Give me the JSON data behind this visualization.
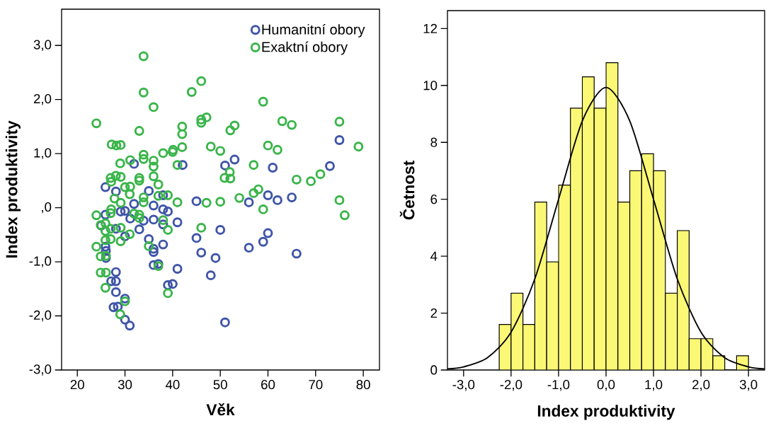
{
  "chart_data": [
    {
      "type": "scatter",
      "xlabel": "Věk",
      "ylabel": "Index produktivity",
      "marker": "circle",
      "legend": "top right",
      "xlim": [
        16.7,
        83.4
      ],
      "ylim": [
        -3.0,
        3.67
      ],
      "xticks": [
        20,
        30,
        40,
        50,
        60,
        70,
        80
      ],
      "yticks": [
        {
          "value": -3,
          "label": "-3,0"
        },
        {
          "value": -2,
          "label": "-2,0"
        },
        {
          "value": -1,
          "label": "-1,0"
        },
        {
          "value": 0,
          "label": ",0"
        },
        {
          "value": 1,
          "label": "1,0"
        },
        {
          "value": 2,
          "label": "2,0"
        },
        {
          "value": 3,
          "label": "3,0"
        }
      ],
      "series": [
        {
          "name": "Humanitní obory",
          "color": "#3f55a8",
          "x": [
            75,
            73,
            53,
            51,
            61,
            31.9,
            42.1,
            35,
            25.9,
            28.1,
            60,
            62,
            65,
            56,
            45,
            31.9,
            36,
            38,
            29.1,
            30,
            31.1,
            25.9,
            38,
            39,
            36,
            33.9,
            41,
            38,
            25,
            33,
            28.1,
            50,
            60,
            30,
            35,
            45,
            38,
            59,
            56,
            25.9,
            26,
            26,
            36,
            36,
            46,
            49,
            66,
            36,
            37,
            41,
            48,
            28.1,
            27.1,
            28.1,
            28.1,
            39,
            40,
            27.6,
            28.5,
            30,
            30,
            31,
            51
          ],
          "values": [
            1.25,
            0.77,
            0.89,
            0.78,
            0.74,
            0.81,
            0.79,
            0.31,
            0.38,
            0.3,
            0.23,
            0.14,
            0.19,
            0.1,
            0.12,
            0.07,
            0.04,
            0.23,
            -0.07,
            -0.06,
            -0.2,
            -0.13,
            -0.03,
            -0.07,
            -0.22,
            -0.24,
            -0.27,
            -0.31,
            -0.33,
            -0.4,
            -0.39,
            -0.41,
            -0.47,
            -0.53,
            -0.58,
            -0.56,
            -0.68,
            -0.63,
            -0.74,
            -0.72,
            -0.8,
            -0.93,
            -0.76,
            -0.82,
            -0.83,
            -0.93,
            -0.85,
            -1.06,
            -1.04,
            -1.13,
            -1.25,
            -1.19,
            -1.36,
            -1.36,
            -1.56,
            -1.43,
            -1.41,
            -1.84,
            -1.83,
            -1.68,
            -2.07,
            -2.18,
            -2.12
          ]
        },
        {
          "name": "Exaktní obory",
          "color": "#3ab54a",
          "x": [
            24,
            33.9,
            33.9,
            36,
            44,
            46,
            59,
            46,
            46,
            47.1,
            42,
            42,
            42,
            52.1,
            53,
            63,
            65,
            75,
            79,
            33,
            27.2,
            28.2,
            29.1,
            48,
            50,
            60,
            62,
            38,
            40,
            40.1,
            33.9,
            33.9,
            36,
            36,
            29,
            31.1,
            41,
            57,
            52,
            50.9,
            52.1,
            66,
            69,
            71,
            27,
            28.1,
            29.1,
            27.1,
            33,
            33,
            36,
            37,
            30,
            31.1,
            31,
            57,
            58,
            54,
            37,
            39,
            33.9,
            33.9,
            27.8,
            29.1,
            41,
            47.1,
            50,
            75,
            76.1,
            59,
            24,
            27.1,
            27,
            31.9,
            33,
            33,
            38,
            24.9,
            25.9,
            25.9,
            27,
            29.1,
            39,
            46,
            31,
            27,
            25.9,
            29.1,
            24,
            35,
            24.9,
            26,
            37,
            24.9,
            26,
            25.9,
            39,
            30,
            29
          ],
          "values": [
            1.56,
            2.8,
            2.13,
            1.86,
            2.14,
            2.34,
            1.96,
            1.63,
            1.57,
            1.67,
            1.5,
            1.36,
            1.12,
            1.43,
            1.52,
            1.6,
            1.53,
            1.59,
            1.13,
            1.42,
            1.17,
            1.15,
            1.16,
            1.13,
            1.05,
            1.15,
            1.07,
            1.01,
            1.03,
            1.07,
            0.98,
            0.9,
            0.87,
            0.76,
            0.82,
            0.88,
            0.79,
            0.79,
            0.66,
            0.55,
            0.54,
            0.52,
            0.49,
            0.62,
            0.55,
            0.59,
            0.57,
            0.48,
            0.55,
            0.5,
            0.58,
            0.43,
            0.38,
            0.39,
            0.25,
            0.27,
            0.34,
            0.18,
            0.22,
            0.23,
            0.19,
            0.1,
            0.17,
            0.09,
            0.1,
            0.09,
            0.11,
            0.14,
            -0.14,
            -0.03,
            -0.14,
            -0.03,
            -0.1,
            -0.11,
            -0.13,
            -0.19,
            -0.23,
            -0.32,
            -0.29,
            -0.43,
            -0.39,
            -0.37,
            -0.41,
            -0.37,
            -0.49,
            -0.58,
            -0.6,
            -0.62,
            -0.72,
            -0.71,
            -0.9,
            -0.89,
            -1.08,
            -1.2,
            -1.2,
            -1.48,
            -1.58,
            -1.73,
            -1.97
          ]
        }
      ]
    },
    {
      "type": "histogram",
      "xlabel": "Index produktivity",
      "ylabel": "Četnost",
      "color": "#fbf875",
      "xlim": [
        -3.34,
        3.34
      ],
      "ylim": [
        0,
        12.63
      ],
      "xticks": [
        {
          "value": -3,
          "label": "-3,0"
        },
        {
          "value": -2,
          "label": "-2,0"
        },
        {
          "value": -1,
          "label": "-1,0"
        },
        {
          "value": 0,
          "label": "0,0"
        },
        {
          "value": 1,
          "label": "1,0"
        },
        {
          "value": 2,
          "label": "2,0"
        },
        {
          "value": 3,
          "label": "3,0"
        }
      ],
      "yticks": [
        0,
        2,
        4,
        6,
        8,
        10,
        12
      ],
      "bins": [
        -2.25,
        -2.0,
        -1.75,
        -1.5,
        -1.25,
        -1.0,
        -0.75,
        -0.5,
        -0.25,
        0.0,
        0.25,
        0.5,
        0.75,
        1.0,
        1.25,
        1.5,
        1.75,
        2.0,
        2.25,
        2.5,
        2.75,
        3.0
      ],
      "values": [
        1.6,
        2.7,
        1.6,
        5.9,
        3.8,
        6.5,
        9.2,
        10.3,
        9.2,
        10.8,
        5.9,
        7.0,
        7.6,
        7.0,
        2.7,
        4.9,
        1.1,
        1.1,
        0.5,
        0,
        0.5
      ],
      "series": [
        {
          "type": "line",
          "color": "#000000",
          "x": [
            -3.34,
            -3.0,
            -2.5,
            -2.0,
            -1.5,
            -1.0,
            -0.5,
            0.0,
            0.5,
            1.0,
            1.5,
            2.0,
            2.5,
            3.0,
            3.34
          ],
          "values": [
            0.04,
            0.11,
            0.43,
            1.33,
            3.2,
            6.0,
            8.75,
            9.93,
            8.75,
            6.0,
            3.2,
            1.33,
            0.43,
            0.11,
            0.04
          ]
        }
      ]
    }
  ]
}
